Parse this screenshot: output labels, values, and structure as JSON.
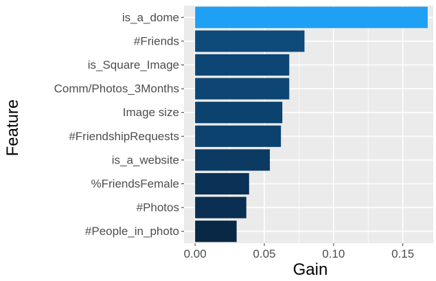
{
  "chart_data": {
    "type": "bar",
    "orientation": "horizontal",
    "xlabel": "Gain",
    "ylabel": "Feature",
    "xlim": [
      -0.008,
      0.172
    ],
    "x_ticks": [
      0.0,
      0.05,
      0.1,
      0.15
    ],
    "x_tick_labels": [
      "0.00",
      "0.05",
      "0.10",
      "0.15"
    ],
    "grid": true,
    "categories": [
      "is_a_dome",
      "#Friends",
      "is_Square_Image",
      "Comm/Photos_3Months",
      "Image size",
      "#FriendshipRequests",
      "is_a_website",
      "%FriendsFemale",
      "#Photos",
      "#People_in_photo"
    ],
    "values": [
      0.168,
      0.079,
      0.068,
      0.068,
      0.063,
      0.062,
      0.054,
      0.039,
      0.037,
      0.03
    ],
    "bar_colors": [
      "#1ea1f5",
      "#0e4a7a",
      "#0d4674",
      "#0d4674",
      "#0c426e",
      "#0c426e",
      "#0b3a62",
      "#0a3156",
      "#0a2f52",
      "#092846"
    ],
    "panel_background": "#ebebeb",
    "gridline_color": "#ffffff"
  }
}
